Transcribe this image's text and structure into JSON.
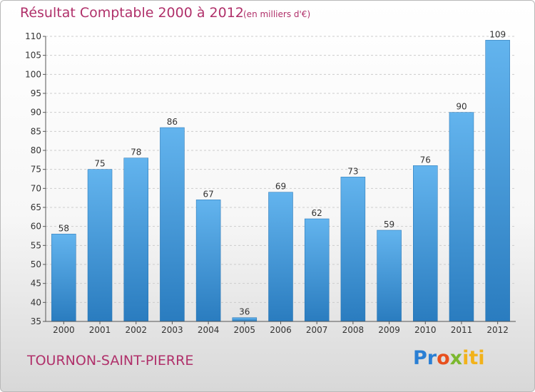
{
  "title": "Résultat Comptable 2000 à 2012",
  "unit": "(en milliers d'€)",
  "place": "TOURNON-SAINT-PIERRE",
  "logo": {
    "parts": [
      "Pr",
      "o",
      "x",
      "iti"
    ],
    "colors": [
      "#2a7fd4",
      "#e8501e",
      "#7cb82f",
      "#f2b21a"
    ]
  },
  "colors": {
    "bar_light": "#63b4ee",
    "bar_dark": "#2a7cbf",
    "text_accent": "#b0306a",
    "grid": "#cccccc"
  },
  "chart_data": {
    "type": "bar",
    "categories": [
      "2000",
      "2001",
      "2002",
      "2003",
      "2004",
      "2005",
      "2006",
      "2007",
      "2008",
      "2009",
      "2010",
      "2011",
      "2012"
    ],
    "values": [
      58,
      75,
      78,
      86,
      67,
      36,
      69,
      62,
      73,
      59,
      76,
      90,
      109
    ],
    "ylim": [
      35,
      110
    ],
    "yticks": [
      35,
      40,
      45,
      50,
      55,
      60,
      65,
      70,
      75,
      80,
      85,
      90,
      95,
      100,
      105,
      110
    ],
    "grid": "horizontal dashed",
    "legend": "none"
  }
}
